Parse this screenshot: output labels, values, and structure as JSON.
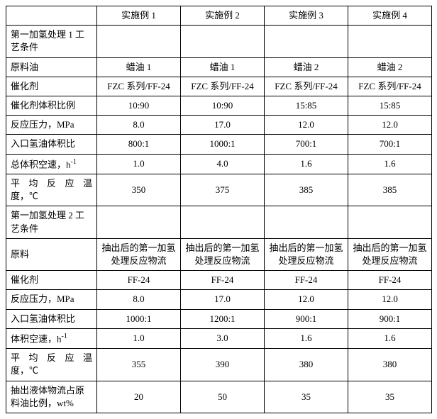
{
  "columns": [
    "实施例 1",
    "实施例 2",
    "实施例 3",
    "实施例 4"
  ],
  "sections": {
    "s1_header": "第一加氢处理 1 工艺条件",
    "s2_header": "第一加氢处理 2 工艺条件"
  },
  "rows": [
    {
      "label": "原料油",
      "values": [
        "蜡油 1",
        "蜡油 1",
        "蜡油 2",
        "蜡油 2"
      ]
    },
    {
      "label": "催化剂",
      "values": [
        "FZC 系列/FF-24",
        "FZC 系列/FF-24",
        "FZC 系列/FF-24",
        "FZC 系列/FF-24"
      ]
    },
    {
      "label": "催化剂体积比例",
      "values": [
        "10:90",
        "10:90",
        "15:85",
        "15:85"
      ]
    },
    {
      "label": "反应压力，MPa",
      "values": [
        "8.0",
        "17.0",
        "12.0",
        "12.0"
      ]
    },
    {
      "label": "入口氢油体积比",
      "values": [
        "800:1",
        "1000:1",
        "700:1",
        "700:1"
      ]
    },
    {
      "label_html": "总体积空速，h<sup>-1</sup>",
      "values": [
        "1.0",
        "4.0",
        "1.6",
        "1.6"
      ]
    },
    {
      "label_html": "<span class=\"justify\" style=\"display:block\">平均反应温</span>度，℃",
      "values": [
        "350",
        "375",
        "385",
        "385"
      ]
    }
  ],
  "rows2": [
    {
      "label": "原料",
      "values": [
        "抽出后的第一加氢处理反应物流",
        "抽出后的第一加氢处理反应物流",
        "抽出后的第一加氢处理反应物流",
        "抽出后的第一加氢处理反应物流"
      ]
    },
    {
      "label": "催化剂",
      "values": [
        "FF-24",
        "FF-24",
        "FF-24",
        "FF-24"
      ]
    },
    {
      "label": "反应压力，MPa",
      "values": [
        "8.0",
        "17.0",
        "12.0",
        "12.0"
      ]
    },
    {
      "label": "入口氢油体积比",
      "values": [
        "1000:1",
        "1200:1",
        "900:1",
        "900:1"
      ]
    },
    {
      "label_html": "体积空速，h<sup>-1</sup>",
      "values": [
        "1.0",
        "3.0",
        "1.6",
        "1.6"
      ]
    },
    {
      "label_html": "<span class=\"justify\" style=\"display:block\">平均反应温</span>度，℃",
      "values": [
        "355",
        "390",
        "380",
        "380"
      ]
    },
    {
      "label": "抽出液体物流占原料油比例，wt%",
      "values": [
        "20",
        "50",
        "35",
        "35"
      ]
    }
  ]
}
